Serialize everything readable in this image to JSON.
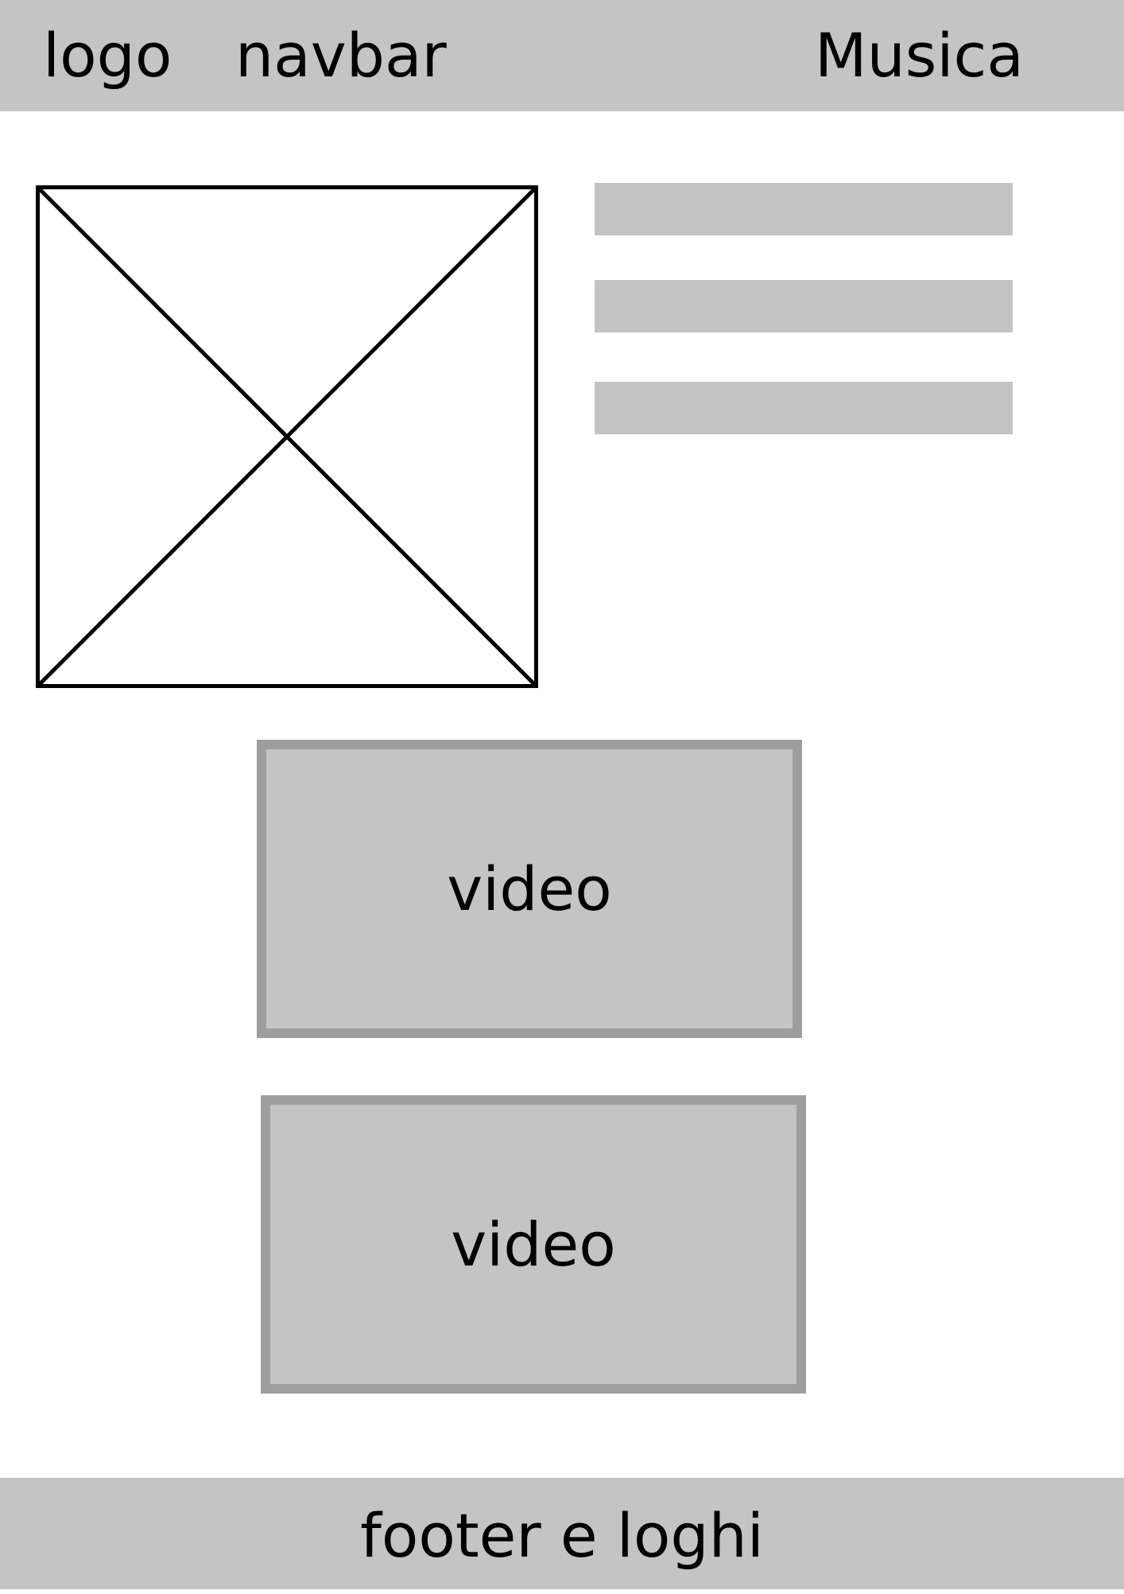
{
  "header": {
    "logo_label": "logo",
    "navbar_label": "navbar",
    "musica_label": "Musica"
  },
  "main": {
    "text_lines": 3,
    "videos": [
      {
        "label": "video"
      },
      {
        "label": "video"
      }
    ]
  },
  "footer": {
    "label": "footer e loghi"
  },
  "colors": {
    "placeholder_fill": "#c4c4c4",
    "video_border": "#9e9e9e",
    "background": "#ffffff",
    "stroke": "#000000"
  }
}
